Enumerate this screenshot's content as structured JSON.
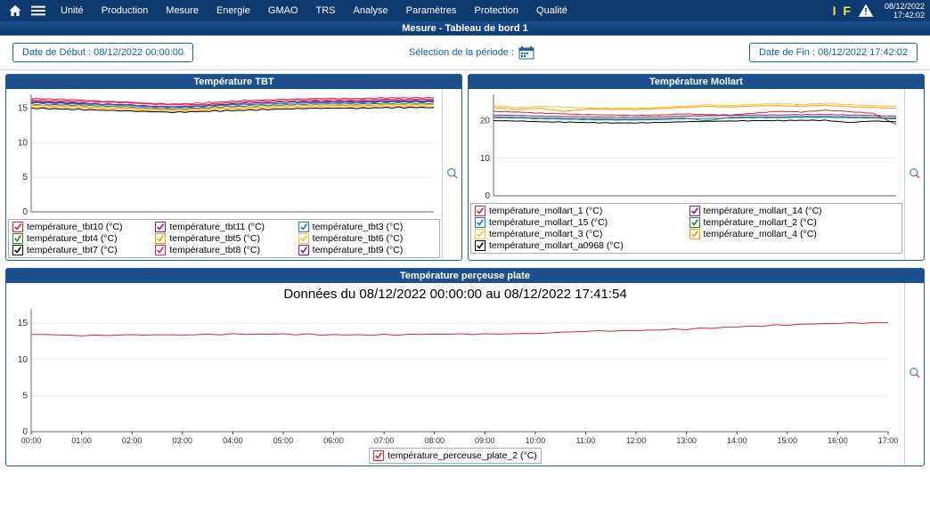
{
  "topbar": {
    "nav": [
      "Unité",
      "Production",
      "Mesure",
      "Energie",
      "GMAO",
      "TRS",
      "Analyse",
      "Paramètres",
      "Protection",
      "Qualité"
    ],
    "if_text": "I F",
    "date": "08/12/2022",
    "time": "17:42:02"
  },
  "subtitle": "Mesure - Tableau de bord 1",
  "datebar": {
    "start_label": "Date de Début : 08/12/2022 00:00:00",
    "center_label": "Sélection de la période :",
    "end_label": "Date de Fin : 08/12/2022 17:42:02"
  },
  "chart_tbt": {
    "title": "Température TBT",
    "ylim": [
      0,
      17
    ],
    "yticks": [
      0,
      5,
      10,
      15
    ],
    "series": [
      {
        "label": "température_tbt10 (°C)",
        "color": "#d62728",
        "y": [
          16.2,
          16.1,
          16.0,
          15.9,
          15.8,
          15.6,
          15.5,
          15.5,
          15.7,
          15.9,
          16.0,
          16.1,
          16.2,
          16.2,
          16.2,
          16.3,
          16.3,
          16.3
        ]
      },
      {
        "label": "température_tbt11 (°C)",
        "color": "#7b1fa2",
        "y": [
          16.0,
          15.9,
          15.8,
          15.6,
          15.5,
          15.3,
          15.2,
          15.3,
          15.5,
          15.7,
          15.8,
          15.9,
          16.0,
          16.0,
          16.0,
          16.1,
          16.1,
          16.1
        ]
      },
      {
        "label": "température_tbt3 (°C)",
        "color": "#1976d2",
        "y": [
          15.8,
          15.7,
          15.6,
          15.5,
          15.4,
          15.2,
          15.1,
          15.2,
          15.4,
          15.5,
          15.6,
          15.7,
          15.8,
          15.8,
          15.8,
          15.9,
          15.9,
          15.9
        ]
      },
      {
        "label": "température_tbt4 (°C)",
        "color": "#2e7d32",
        "y": [
          15.6,
          15.5,
          15.4,
          15.3,
          15.2,
          15.0,
          14.9,
          15.0,
          15.2,
          15.3,
          15.4,
          15.5,
          15.6,
          15.6,
          15.6,
          15.7,
          15.7,
          15.7
        ]
      },
      {
        "label": "température_tbt5 (°C)",
        "color": "#ff9800",
        "y": [
          15.4,
          15.3,
          15.2,
          15.1,
          15.0,
          14.8,
          14.7,
          14.8,
          15.0,
          15.1,
          15.2,
          15.3,
          15.4,
          15.4,
          15.4,
          15.5,
          15.5,
          15.5
        ]
      },
      {
        "label": "température_tbt6 (°C)",
        "color": "#fbc02d",
        "y": [
          15.2,
          15.1,
          15.0,
          14.9,
          14.8,
          14.6,
          14.5,
          14.6,
          14.8,
          14.9,
          15.0,
          15.1,
          15.2,
          15.2,
          15.2,
          15.3,
          15.3,
          15.3
        ]
      },
      {
        "label": "température_tbt7 (°C)",
        "color": "#000000",
        "y": [
          15.0,
          14.9,
          14.8,
          14.7,
          14.6,
          14.5,
          14.4,
          14.5,
          14.6,
          14.7,
          14.8,
          14.9,
          15.0,
          15.0,
          15.0,
          15.1,
          15.1,
          15.1
        ]
      },
      {
        "label": "température_tbt8 (°C)",
        "color": "#e91e63",
        "y": [
          16.4,
          16.3,
          16.2,
          16.0,
          15.9,
          15.7,
          15.6,
          15.7,
          15.9,
          16.1,
          16.2,
          16.3,
          16.4,
          16.4,
          16.4,
          16.5,
          16.5,
          16.5
        ]
      },
      {
        "label": "température_tbt9 (°C)",
        "color": "#7b1fa2",
        "y": [
          15.9,
          15.8,
          15.7,
          15.6,
          15.5,
          15.3,
          15.2,
          15.3,
          15.5,
          15.7,
          15.8,
          15.9,
          15.9,
          15.9,
          15.9,
          16.0,
          16.0,
          16.0
        ]
      }
    ]
  },
  "chart_mollart": {
    "title": "Température Mollart",
    "ylim": [
      0,
      27
    ],
    "yticks": [
      0,
      10,
      20
    ],
    "series": [
      {
        "label": "température_mollart_1 (°C)",
        "color": "#d62728",
        "y": [
          22.5,
          22.3,
          22.0,
          21.8,
          21.6,
          21.5,
          21.4,
          21.5,
          21.8,
          21.6,
          21.5,
          22.0,
          22.5,
          22.3,
          22.8,
          22.4,
          22.0,
          19.0
        ]
      },
      {
        "label": "température_mollart_14 (°C)",
        "color": "#7b1fa2",
        "y": [
          21.5,
          21.4,
          21.2,
          21.1,
          21.0,
          20.9,
          20.9,
          21.0,
          21.2,
          21.3,
          21.4,
          21.5,
          21.5,
          21.6,
          21.6,
          21.5,
          21.4,
          21.2
        ]
      },
      {
        "label": "température_mollart_15 (°C)",
        "color": "#1976d2",
        "y": [
          20.8,
          20.7,
          20.5,
          20.4,
          20.3,
          20.2,
          20.2,
          20.3,
          20.5,
          20.6,
          20.7,
          20.8,
          20.8,
          20.9,
          20.9,
          20.8,
          20.7,
          20.5
        ]
      },
      {
        "label": "température_mollart_2 (°C)",
        "color": "#2e7d32",
        "y": [
          21.0,
          20.9,
          20.7,
          20.6,
          20.5,
          20.4,
          20.4,
          20.5,
          20.7,
          20.0,
          20.9,
          21.0,
          21.0,
          21.1,
          21.1,
          21.0,
          20.9,
          20.7
        ]
      },
      {
        "label": "température_mollart_3 (°C)",
        "color": "#fbc02d",
        "y": [
          24.0,
          23.5,
          23.8,
          23.6,
          23.4,
          23.3,
          23.3,
          23.5,
          23.8,
          24.2,
          24.0,
          24.3,
          24.5,
          24.3,
          24.6,
          24.2,
          24.0,
          23.8
        ]
      },
      {
        "label": "température_mollart_4 (°C)",
        "color": "#ff9800",
        "y": [
          23.5,
          23.0,
          23.3,
          22.5,
          23.1,
          23.0,
          23.0,
          23.2,
          23.5,
          23.8,
          23.6,
          23.9,
          24.0,
          23.8,
          24.1,
          23.7,
          23.5,
          23.3
        ]
      },
      {
        "label": "température_mollart_a0968 (°C)",
        "color": "#000000",
        "y": [
          20.0,
          19.9,
          19.7,
          19.6,
          19.5,
          19.4,
          19.4,
          19.5,
          19.7,
          19.8,
          19.9,
          20.0,
          20.0,
          20.1,
          20.1,
          19.5,
          19.9,
          19.7
        ]
      }
    ]
  },
  "chart_perc": {
    "title": "Température perçeuse plate",
    "subtitle": "Données du 08/12/2022 00:00:00 au 08/12/2022 17:41:54",
    "ylim": [
      0,
      17
    ],
    "yticks": [
      0,
      5,
      10,
      15
    ],
    "xticks": [
      "00:00",
      "01:00",
      "02:00",
      "03:00",
      "04:00",
      "05:00",
      "06:00",
      "07:00",
      "08:00",
      "09:00",
      "10:00",
      "11:00",
      "12:00",
      "13:00",
      "14:00",
      "15:00",
      "16:00",
      "17:00"
    ],
    "series": [
      {
        "label": "température_perceuse_plate_2 (°C)",
        "color": "#d62728",
        "y": [
          13.5,
          13.3,
          13.4,
          13.4,
          13.5,
          13.5,
          13.4,
          13.4,
          13.5,
          13.5,
          13.6,
          13.9,
          14.0,
          14.2,
          14.5,
          14.8,
          15.0,
          15.1
        ]
      }
    ]
  },
  "colors": {
    "accent": "#1c4f8c",
    "grid": "#d8d8d8",
    "zoom": "#4a7ab8"
  }
}
